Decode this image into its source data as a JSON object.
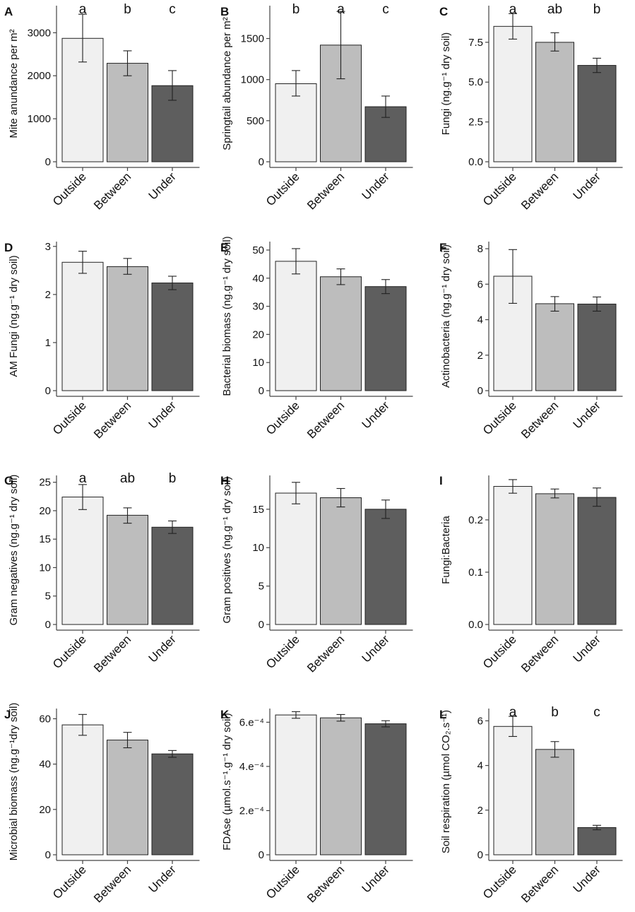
{
  "figure": {
    "categories": [
      "Outside",
      "Between",
      "Under"
    ],
    "bar_colors": [
      "#f0f0f0",
      "#bdbdbd",
      "#5e5e5e"
    ],
    "bar_stroke": "#222222"
  },
  "chart_data": [
    {
      "type": "bar",
      "letter": "A",
      "ylabel": "Mite  anundance per m²",
      "categories": [
        "Outside",
        "Between",
        "Under"
      ],
      "values": [
        2870,
        2290,
        1770
      ],
      "err_low": [
        2320,
        2000,
        1430
      ],
      "err_high": [
        3430,
        2580,
        2120
      ],
      "ylim": [
        0,
        3630
      ],
      "yticks": [
        0,
        1000,
        2000,
        3000
      ],
      "yticklabels": [
        "0",
        "1000",
        "2000",
        "3000"
      ],
      "sig": [
        "a",
        "b",
        "c"
      ]
    },
    {
      "type": "bar",
      "letter": "B",
      "ylabel": "Springtail  abundance per m²",
      "categories": [
        "Outside",
        "Between",
        "Under"
      ],
      "values": [
        950,
        1420,
        670
      ],
      "err_low": [
        800,
        1010,
        540
      ],
      "err_high": [
        1110,
        1830,
        800
      ],
      "ylim": [
        0,
        1900
      ],
      "yticks": [
        0,
        500,
        1000,
        1500
      ],
      "yticklabels": [
        "0",
        "500",
        "1000",
        "1500"
      ],
      "sig": [
        "b",
        "a",
        "c"
      ]
    },
    {
      "type": "bar",
      "letter": "C",
      "ylabel": "Fungi (ng.g⁻¹ dry soil)",
      "categories": [
        "Outside",
        "Between",
        "Under"
      ],
      "values": [
        8.5,
        7.5,
        6.05
      ],
      "err_low": [
        7.7,
        6.95,
        5.6
      ],
      "err_high": [
        9.3,
        8.1,
        6.5
      ],
      "ylim": [
        0,
        9.8
      ],
      "yticks": [
        0,
        2.5,
        5,
        7.5
      ],
      "yticklabels": [
        "0.0",
        "2.5",
        "5.0",
        "7.5"
      ],
      "sig": [
        "a",
        "ab",
        "b"
      ]
    },
    {
      "type": "bar",
      "letter": "D",
      "ylabel": "AM Fungi (ng.g⁻¹ dry soil)",
      "categories": [
        "Outside",
        "Between",
        "Under"
      ],
      "values": [
        2.67,
        2.58,
        2.24
      ],
      "err_low": [
        2.44,
        2.42,
        2.1
      ],
      "err_high": [
        2.9,
        2.75,
        2.38
      ],
      "ylim": [
        0,
        3.1
      ],
      "yticks": [
        0,
        1,
        2,
        3
      ],
      "yticklabels": [
        "0",
        "1",
        "2",
        "3"
      ],
      "sig": []
    },
    {
      "type": "bar",
      "letter": "E",
      "ylabel": "Bacterial biomass (ng.g⁻¹ dry soil)",
      "categories": [
        "Outside",
        "Between",
        "Under"
      ],
      "values": [
        46,
        40.5,
        37
      ],
      "err_low": [
        41.5,
        37.7,
        34.5
      ],
      "err_high": [
        50.5,
        43.3,
        39.5
      ],
      "ylim": [
        0,
        53
      ],
      "yticks": [
        0,
        10,
        20,
        30,
        40,
        50
      ],
      "yticklabels": [
        "0",
        "10",
        "20",
        "30",
        "40",
        "50"
      ],
      "sig": []
    },
    {
      "type": "bar",
      "letter": "F",
      "ylabel": "Actinobacteria (ng.g⁻¹ dry soil)",
      "categories": [
        "Outside",
        "Between",
        "Under"
      ],
      "values": [
        6.45,
        4.9,
        4.88
      ],
      "err_low": [
        4.92,
        4.48,
        4.48
      ],
      "err_high": [
        7.95,
        5.3,
        5.28
      ],
      "ylim": [
        0,
        8.4
      ],
      "yticks": [
        0,
        2,
        4,
        6,
        8
      ],
      "yticklabels": [
        "0",
        "2",
        "4",
        "6",
        "8"
      ],
      "sig": []
    },
    {
      "type": "bar",
      "letter": "G",
      "ylabel": "Gram negatives (ng.g⁻¹ dry soil)",
      "categories": [
        "Outside",
        "Between",
        "Under"
      ],
      "values": [
        22.4,
        19.2,
        17.1
      ],
      "err_low": [
        20.2,
        17.8,
        16
      ],
      "err_high": [
        24.6,
        20.5,
        18.2
      ],
      "ylim": [
        0,
        26.2
      ],
      "yticks": [
        0,
        5,
        10,
        15,
        20,
        25
      ],
      "yticklabels": [
        "0",
        "5",
        "10",
        "15",
        "20",
        "25"
      ],
      "sig": [
        "a",
        "ab",
        "b"
      ]
    },
    {
      "type": "bar",
      "letter": "H",
      "ylabel": "Gram positives (ng.g⁻¹ dry soil)",
      "categories": [
        "Outside",
        "Between",
        "Under"
      ],
      "values": [
        17.1,
        16.5,
        15
      ],
      "err_low": [
        15.7,
        15.3,
        13.8
      ],
      "err_high": [
        18.5,
        17.7,
        16.2
      ],
      "ylim": [
        0,
        19.4
      ],
      "yticks": [
        0,
        5,
        10,
        15
      ],
      "yticklabels": [
        "0",
        "5",
        "10",
        "15"
      ],
      "sig": []
    },
    {
      "type": "bar",
      "letter": "I",
      "ylabel": "Fungi:Bacteria",
      "categories": [
        "Outside",
        "Between",
        "Under"
      ],
      "values": [
        0.264,
        0.25,
        0.243
      ],
      "err_low": [
        0.251,
        0.242,
        0.226
      ],
      "err_high": [
        0.277,
        0.259,
        0.261
      ],
      "ylim": [
        0,
        0.285
      ],
      "yticks": [
        0,
        0.1,
        0.2
      ],
      "yticklabels": [
        "0.0",
        "0.1",
        "0.2"
      ],
      "sig": []
    },
    {
      "type": "bar",
      "letter": "J",
      "ylabel": "Microbial biomass (ng.g⁻¹dry soil)",
      "categories": [
        "Outside",
        "Between",
        "Under"
      ],
      "values": [
        57.3,
        50.6,
        44.5
      ],
      "err_low": [
        52.7,
        47.2,
        43
      ],
      "err_high": [
        61.9,
        54,
        46
      ],
      "ylim": [
        0,
        64.5
      ],
      "yticks": [
        0,
        20,
        40,
        60
      ],
      "yticklabels": [
        "0",
        "20",
        "40",
        "60"
      ],
      "sig": []
    },
    {
      "type": "bar",
      "letter": "K",
      "ylabel": "FDAse (µmol.s⁻¹.g⁻¹ dry soil)",
      "categories": [
        "Outside",
        "Between",
        "Under"
      ],
      "values": [
        0.000633,
        0.00062,
        0.000593
      ],
      "err_low": [
        0.000618,
        0.000605,
        0.000579
      ],
      "err_high": [
        0.000648,
        0.000635,
        0.000607
      ],
      "ylim": [
        0,
        0.000662
      ],
      "yticks": [
        0,
        0.0002,
        0.0004,
        0.0006
      ],
      "yticklabels": [
        "0",
        "2.e⁻⁴",
        "4.e⁻⁴",
        "6.e⁻⁴"
      ],
      "sig": []
    },
    {
      "type": "bar",
      "letter": "L",
      "ylabel": "Soil respiration (µmol CO₂.s⁻¹)",
      "categories": [
        "Outside",
        "Between",
        "Under"
      ],
      "values": [
        5.75,
        4.72,
        1.22
      ],
      "err_low": [
        5.3,
        4.37,
        1.12
      ],
      "err_high": [
        6.2,
        5.07,
        1.32
      ],
      "ylim": [
        0,
        6.55
      ],
      "yticks": [
        0,
        2,
        4,
        6
      ],
      "yticklabels": [
        "0",
        "2",
        "4",
        "6"
      ],
      "sig": [
        "a",
        "b",
        "c"
      ]
    }
  ]
}
